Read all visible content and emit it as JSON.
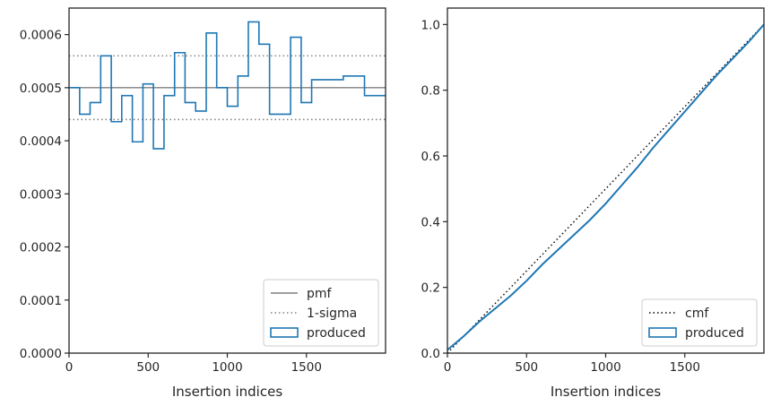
{
  "chart_data": [
    {
      "type": "line",
      "xlabel": "Insertion indices",
      "ylabel": "",
      "xlim": [
        0,
        2000
      ],
      "ylim": [
        0,
        0.00065
      ],
      "xticks": [
        "0",
        "500",
        "1000",
        "1500"
      ],
      "xtick_values": [
        0,
        500,
        1000,
        1500
      ],
      "yticks": [
        "0.0000",
        "0.0001",
        "0.0002",
        "0.0003",
        "0.0004",
        "0.0005",
        "0.0006"
      ],
      "ytick_values": [
        0,
        0.0001,
        0.0002,
        0.0003,
        0.0004,
        0.0005,
        0.0006
      ],
      "grid": false,
      "legend_position": "lower-right",
      "series": [
        {
          "name": "pmf",
          "style": "solid",
          "color": "#7f7f7f",
          "x": [
            0,
            2000
          ],
          "y": [
            0.0005,
            0.0005
          ]
        },
        {
          "name": "1-sigma",
          "style": "dotted",
          "color": "#7f7f7f",
          "x": [
            0,
            2000
          ],
          "y": [
            0.00056,
            0.00056
          ]
        },
        {
          "name": "",
          "style": "dotted",
          "color": "#7f7f7f",
          "x": [
            0,
            2000
          ],
          "y": [
            0.00044,
            0.00044
          ]
        },
        {
          "name": "produced",
          "style": "step-histogram",
          "color": "#1f77b4",
          "bin_edges": [
            0,
            67,
            133,
            200,
            267,
            333,
            400,
            467,
            533,
            600,
            667,
            733,
            800,
            867,
            933,
            1000,
            1067,
            1133,
            1200,
            1267,
            1333,
            1400,
            1467,
            1533,
            1600,
            1667,
            1733,
            1800,
            1867,
            1933,
            2000
          ],
          "values": [
            0.0005,
            0.00045,
            0.000472,
            0.00056,
            0.000436,
            0.000485,
            0.000398,
            0.000507,
            0.000385,
            0.000485,
            0.000566,
            0.000472,
            0.000456,
            0.000603,
            0.0005,
            0.000465,
            0.000522,
            0.000624,
            0.000582,
            0.00045,
            0.00045,
            0.000595,
            0.000472,
            0.000515,
            0.000515,
            0.000515,
            0.000522,
            0.000522,
            0.000485,
            0.000485
          ]
        }
      ]
    },
    {
      "type": "line",
      "xlabel": "Insertion indices",
      "ylabel": "",
      "xlim": [
        0,
        2000
      ],
      "ylim": [
        0,
        1.05
      ],
      "xticks": [
        "0",
        "500",
        "1000",
        "1500"
      ],
      "xtick_values": [
        0,
        500,
        1000,
        1500
      ],
      "yticks": [
        "0.0",
        "0.2",
        "0.4",
        "0.6",
        "0.8",
        "1.0"
      ],
      "ytick_values": [
        0,
        0.2,
        0.4,
        0.6,
        0.8,
        1.0
      ],
      "grid": false,
      "legend_position": "lower-right",
      "series": [
        {
          "name": "cmf",
          "style": "dotted",
          "color": "#000000",
          "x": [
            0,
            2000
          ],
          "y": [
            0,
            1.0
          ]
        },
        {
          "name": "produced",
          "style": "solid",
          "color": "#1f77b4",
          "x": [
            0,
            100,
            200,
            300,
            400,
            500,
            600,
            700,
            800,
            900,
            1000,
            1100,
            1200,
            1300,
            1400,
            1500,
            1600,
            1700,
            1800,
            1900,
            2000
          ],
          "y": [
            0.01,
            0.05,
            0.095,
            0.135,
            0.175,
            0.22,
            0.27,
            0.315,
            0.36,
            0.405,
            0.455,
            0.51,
            0.565,
            0.625,
            0.68,
            0.735,
            0.79,
            0.845,
            0.895,
            0.945,
            1.0
          ]
        }
      ]
    }
  ]
}
